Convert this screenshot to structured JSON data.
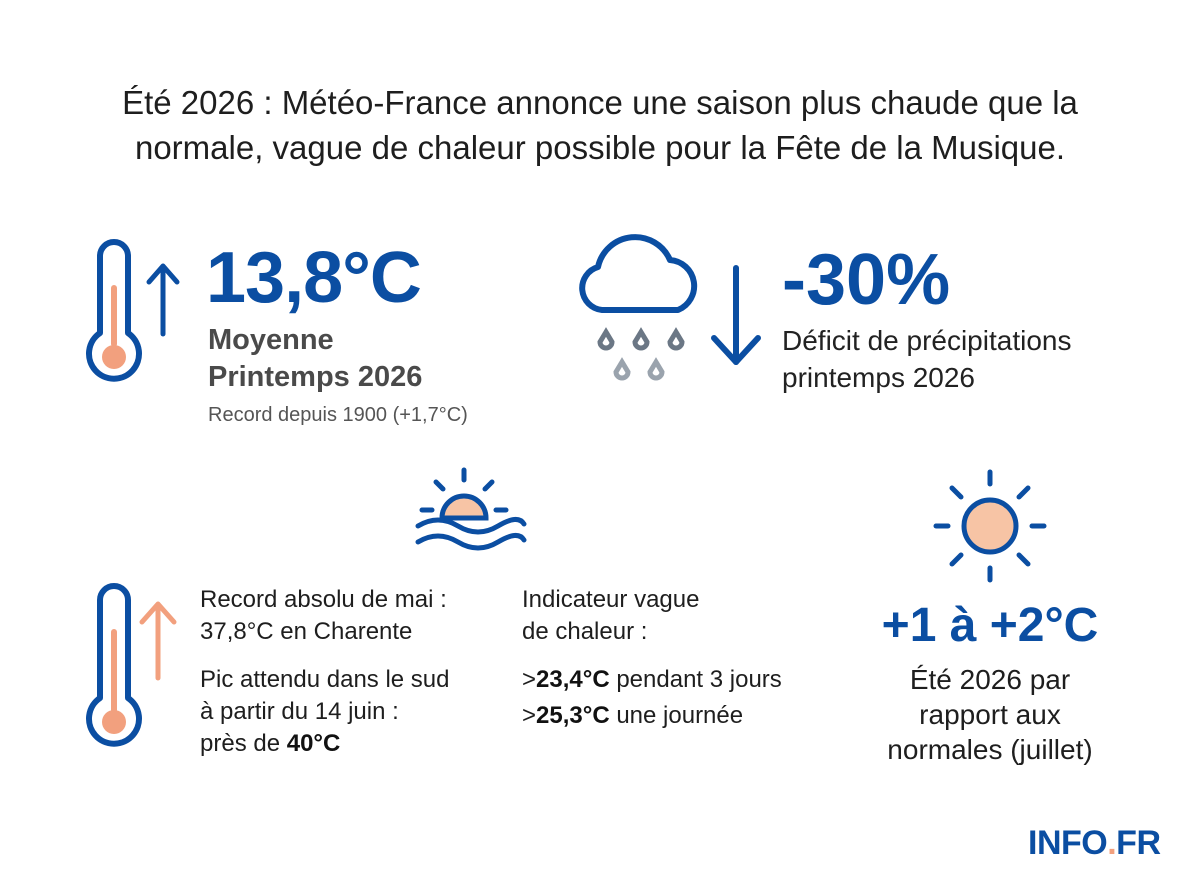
{
  "headline": "Été 2026 : Météo-France annonce une saison plus chaude que la normale, vague de chaleur possible pour la Fête de la Musique.",
  "spring_temp": {
    "value": "13,8°C",
    "label_line1": "Moyenne",
    "label_line2": "Printemps 2026",
    "note": "Record depuis 1900 (+1,7°C)"
  },
  "precipitation": {
    "value": "-30%",
    "label_line1": "Déficit de précipitations",
    "label_line2": "printemps 2026"
  },
  "may_record": {
    "line1": "Record absolu de mai :",
    "line2": "37,8°C en Charente",
    "peak_line1": "Pic attendu dans le sud",
    "peak_line2": "à partir du 14 juin :",
    "peak_line3_prefix": "près de ",
    "peak_line3_value": "40°C"
  },
  "heatwave": {
    "title_line1": "Indicateur vague",
    "title_line2": "de chaleur :",
    "item1_prefix": ">",
    "item1_value": "23,4°C",
    "item1_suffix": " pendant 3 jours",
    "item2_prefix": ">",
    "item2_value": "25,3°C",
    "item2_suffix": " une journée"
  },
  "summer": {
    "value": "+1 à +2°C",
    "label_line1": "Été 2026 par",
    "label_line2": "rapport aux",
    "label_line3": "normales (juillet)"
  },
  "logo": {
    "main": "INFO",
    "dot": ".",
    "tld": "FR"
  },
  "colors": {
    "blue": "#0b4ea2",
    "peach": "#f2a07e",
    "grey_drop": "#9aa3ad"
  },
  "icons": [
    "thermometer-icon",
    "arrow-up-icon",
    "rain-cloud-icon",
    "arrow-down-icon",
    "sun-over-water-icon",
    "thermometer-hot-icon",
    "arrow-up-orange-icon",
    "sun-icon"
  ]
}
